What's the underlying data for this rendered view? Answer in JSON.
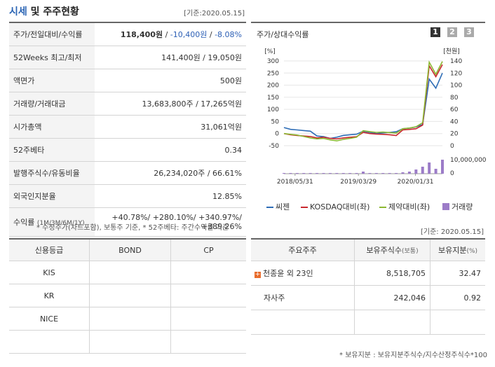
{
  "header": {
    "title_accent": "시세",
    "title_rest": " 및 주주현황",
    "base_date": "[기준:2020.05.15]"
  },
  "quote": {
    "rows": [
      {
        "label": "주가/전일대비/수익률",
        "price": "118,400원",
        "change": "-10,400원",
        "rate": "-8.08%"
      },
      {
        "label": "52Weeks 최고/최저",
        "value": "141,400원 / 19,050원"
      },
      {
        "label": "액면가",
        "value": "500원"
      },
      {
        "label": "거래량/거래대금",
        "value": "13,683,800주 / 17,265억원"
      },
      {
        "label": "시가총액",
        "value": "31,061억원"
      },
      {
        "label": "52주베타",
        "value": "0.34"
      },
      {
        "label": "발행주식수/유동비율",
        "value": "26,234,020주 / 66.61%"
      },
      {
        "label": "외국인지분율",
        "value": "12.85%"
      },
      {
        "label": "수익률",
        "label_sub": "(1M/3M/6M/1Y)",
        "r1": "+40.78%",
        "r2": "+280.10%",
        "r3": "+340.97%",
        "r4": "+389.26%"
      }
    ],
    "footnote": "* 수정주가(차트포함), 보통주 기준, * 52주베타: 주간수익률 기준"
  },
  "chart": {
    "header_label": "주가/상대수익률",
    "pages": [
      "1",
      "2",
      "3"
    ],
    "active_page": "1",
    "left_unit": "[%]",
    "right_unit": "[천원]",
    "volume_unit": "10,000,000",
    "volume_zero": "0",
    "left_ticks": [
      "300",
      "250",
      "200",
      "150",
      "100",
      "50",
      "0",
      "-50"
    ],
    "right_ticks": [
      "140",
      "120",
      "100",
      "80",
      "60",
      "40",
      "20",
      "0"
    ],
    "x_ticks": [
      "2018/05/31",
      "2019/03/29",
      "2020/01/31"
    ],
    "legend": [
      {
        "label": "씨젠",
        "color": "#2e6db6",
        "kind": "line"
      },
      {
        "label": "KOSDAQ대비(좌)",
        "color": "#c8282f",
        "kind": "line"
      },
      {
        "label": "제약대비(좌)",
        "color": "#8cb832",
        "kind": "line"
      },
      {
        "label": "거래량",
        "color": "#9c7cc8",
        "kind": "box"
      }
    ]
  },
  "chart_data": {
    "type": "line",
    "x_ticks": [
      "2018/05/31",
      "2019/03/29",
      "2020/01/31"
    ],
    "left_axis": {
      "label": "[%]",
      "range": [
        -50,
        300
      ]
    },
    "right_axis": {
      "label": "[천원]",
      "range": [
        0,
        140
      ]
    },
    "series": [
      {
        "name": "씨젠",
        "axis": "right",
        "color": "#2e6db6",
        "values": [
          30,
          27,
          26,
          25,
          24,
          16,
          15,
          12,
          14,
          17,
          18,
          19,
          24,
          22,
          20,
          21,
          22,
          23,
          28,
          29,
          31,
          35,
          110,
          95,
          120
        ]
      },
      {
        "name": "KOSDAQ대비(좌)",
        "axis": "left",
        "color": "#c8282f",
        "values": [
          0,
          -5,
          -8,
          -10,
          -12,
          -18,
          -15,
          -20,
          -22,
          -18,
          -15,
          -13,
          5,
          0,
          -2,
          -3,
          -5,
          -8,
          15,
          17,
          20,
          35,
          280,
          235,
          285
        ]
      },
      {
        "name": "제약대비(좌)",
        "axis": "left",
        "color": "#8cb832",
        "values": [
          0,
          -3,
          -6,
          -12,
          -18,
          -22,
          -20,
          -26,
          -30,
          -24,
          -20,
          -15,
          12,
          8,
          5,
          6,
          4,
          2,
          20,
          23,
          28,
          45,
          295,
          245,
          298
        ]
      },
      {
        "name": "거래량",
        "axis": "volume",
        "color": "#9c7cc8",
        "values": [
          0.05,
          0.05,
          0.05,
          0.05,
          0.05,
          0.05,
          0.05,
          0.05,
          0.05,
          0.05,
          0.05,
          0.05,
          0.15,
          0.05,
          0.05,
          0.05,
          0.05,
          0.05,
          0.1,
          0.15,
          0.3,
          0.5,
          0.8,
          0.35,
          1.0
        ]
      }
    ]
  },
  "credit": {
    "headers": [
      "신용등급",
      "BOND",
      "CP"
    ],
    "rows": [
      [
        "KIS",
        "",
        ""
      ],
      [
        "KR",
        "",
        ""
      ],
      [
        "NICE",
        "",
        ""
      ],
      [
        "",
        "",
        ""
      ]
    ]
  },
  "holders": {
    "base_date": "[기준: 2020.05.15]",
    "headers": {
      "h1": "주요주주",
      "h2": "보유주식수",
      "h2_unit": "(보통)",
      "h3": "보유지분",
      "h3_unit": "(%)"
    },
    "rows": [
      {
        "name": "천종윤 외 23인",
        "expandable": true,
        "shares": "8,518,705",
        "pct": "32.47"
      },
      {
        "name": "자사주",
        "expandable": false,
        "shares": "242,046",
        "pct": "0.92"
      },
      {
        "name": "",
        "expandable": false,
        "shares": "",
        "pct": ""
      }
    ],
    "footnote": "* 보유지분 : 보유지분주식수/지수산정주식수*100"
  }
}
